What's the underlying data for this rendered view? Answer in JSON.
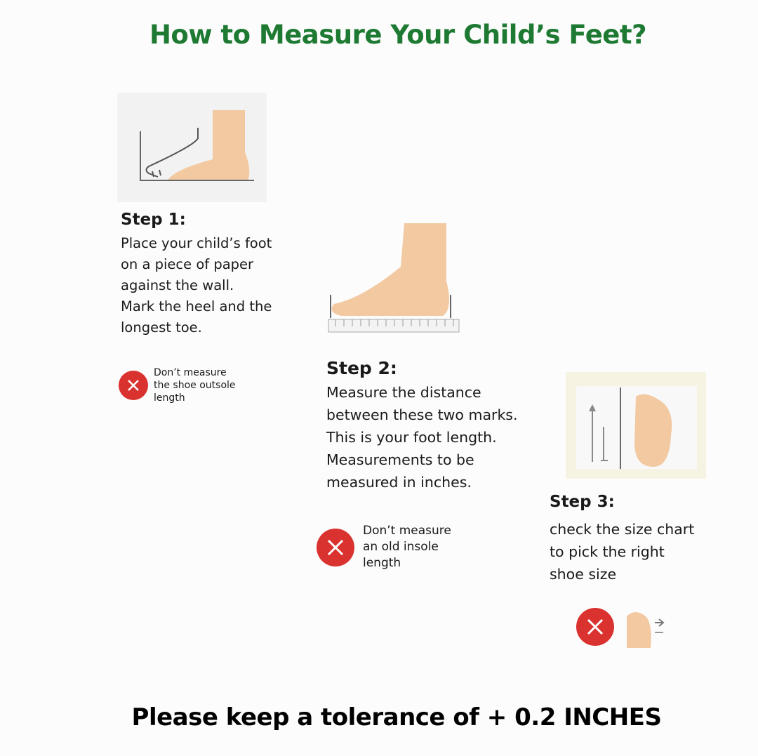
{
  "title": "How to Measure Your Child’s Feet?",
  "colors": {
    "title": "#1e7a32",
    "warning": "#d9322f",
    "skin": "#f2c9a0"
  },
  "steps": [
    {
      "heading": "Step 1:",
      "lines": [
        "Place your child’s foot",
        "on a piece of paper",
        "against the wall.",
        "Mark the heel and the",
        "longest toe."
      ],
      "warning": [
        "Don’t measure",
        "the shoe outsole",
        "length"
      ],
      "icon": "foot-against-wall-illustration"
    },
    {
      "heading": "Step 2:",
      "lines": [
        "Measure the distance",
        "between these two marks.",
        "This is your foot length.",
        "Measurements to be",
        "measured in inches."
      ],
      "warning": [
        "Don’t measure",
        "an old insole",
        "length"
      ],
      "icon": "foot-on-ruler-illustration"
    },
    {
      "heading": "Step 3:",
      "lines": [
        "check the size chart",
        "to pick the right",
        "shoe size"
      ],
      "warning": [],
      "icon": "foot-size-chart-illustration"
    }
  ],
  "footer": "Please keep a tolerance of + 0.2 INCHES"
}
